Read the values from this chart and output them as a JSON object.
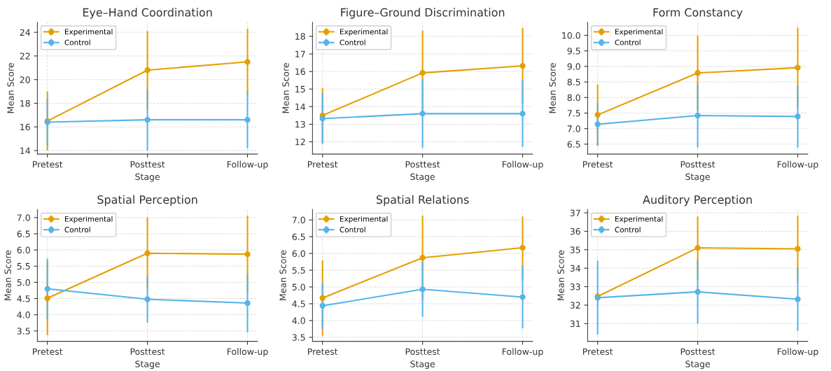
{
  "chart_data": [
    {
      "type": "line",
      "title": "Eye–Hand Coordination",
      "xlabel": "Stage",
      "ylabel": "Mean Score",
      "categories": [
        "Pretest",
        "Posttest",
        "Follow-up"
      ],
      "ylim": [
        13.7,
        24.85
      ],
      "yticks": [
        14,
        16,
        18,
        20,
        22,
        24
      ],
      "grid": true,
      "legend": "top left",
      "marker": "circle",
      "series": [
        {
          "name": "Experimental",
          "color": "#e69f00",
          "values": [
            16.5,
            20.8,
            21.5
          ],
          "errors": [
            2.5,
            3.3,
            2.8
          ]
        },
        {
          "name": "Control",
          "color": "#56b4e9",
          "values": [
            16.4,
            16.6,
            16.6
          ],
          "errors": [
            2.0,
            2.6,
            2.4
          ]
        }
      ]
    },
    {
      "type": "line",
      "title": "Figure–Ground Discrimination",
      "xlabel": "Stage",
      "ylabel": "Mean Score",
      "categories": [
        "Pretest",
        "Posttest",
        "Follow-up"
      ],
      "ylim": [
        11.3,
        18.8
      ],
      "yticks": [
        12,
        13,
        14,
        15,
        16,
        17,
        18
      ],
      "grid": true,
      "legend": "top left",
      "marker": "circle",
      "series": [
        {
          "name": "Experimental",
          "color": "#e69f00",
          "values": [
            13.5,
            15.92,
            16.32
          ],
          "errors": [
            1.55,
            2.4,
            2.15
          ]
        },
        {
          "name": "Control",
          "color": "#56b4e9",
          "values": [
            13.32,
            13.6,
            13.6
          ],
          "errors": [
            1.45,
            1.95,
            1.9
          ]
        }
      ]
    },
    {
      "type": "line",
      "title": "Form Constancy",
      "xlabel": "Stage",
      "ylabel": "Mean Score",
      "categories": [
        "Pretest",
        "Posttest",
        "Follow-up"
      ],
      "ylim": [
        6.18,
        10.42
      ],
      "yticks": [
        {
          "value": 6.5,
          "label": "6.5"
        },
        {
          "value": 7,
          "label": "7.0"
        },
        {
          "value": 7.5,
          "label": "7.5"
        },
        {
          "value": 8,
          "label": "8.0"
        },
        {
          "value": 8.5,
          "label": "8.5"
        },
        {
          "value": 9,
          "label": "9.0"
        },
        {
          "value": 9.5,
          "label": "9.5"
        },
        {
          "value": 10,
          "label": "10.0"
        }
      ],
      "grid": true,
      "legend": "top left",
      "marker": "circle",
      "series": [
        {
          "name": "Experimental",
          "color": "#e69f00",
          "values": [
            7.44,
            8.79,
            8.96
          ],
          "errors": [
            0.98,
            1.2,
            1.28
          ]
        },
        {
          "name": "Control",
          "color": "#56b4e9",
          "values": [
            7.14,
            7.42,
            7.39
          ],
          "errors": [
            0.69,
            1.03,
            1.0
          ]
        }
      ]
    },
    {
      "type": "line",
      "title": "Spatial Perception",
      "xlabel": "Stage",
      "ylabel": "Mean Score",
      "categories": [
        "Pretest",
        "Posttest",
        "Follow-up"
      ],
      "ylim": [
        3.18,
        7.25
      ],
      "yticks": [
        {
          "value": 3.5,
          "label": "3.5"
        },
        {
          "value": 4,
          "label": "4.0"
        },
        {
          "value": 4.5,
          "label": "4.5"
        },
        {
          "value": 5,
          "label": "5.0"
        },
        {
          "value": 5.5,
          "label": "5.5"
        },
        {
          "value": 6,
          "label": "6.0"
        },
        {
          "value": 6.5,
          "label": "6.5"
        },
        {
          "value": 7,
          "label": "7.0"
        }
      ],
      "grid": true,
      "legend": "top left",
      "marker": "circle",
      "series": [
        {
          "name": "Experimental",
          "color": "#e69f00",
          "values": [
            4.51,
            5.9,
            5.87
          ],
          "errors": [
            1.14,
            1.1,
            1.19
          ]
        },
        {
          "name": "Control",
          "color": "#56b4e9",
          "values": [
            4.8,
            4.48,
            4.36
          ],
          "errors": [
            0.93,
            0.72,
            0.9
          ]
        }
      ]
    },
    {
      "type": "line",
      "title": "Spatial Relations",
      "xlabel": "Stage",
      "ylabel": "Mean Score",
      "categories": [
        "Pretest",
        "Posttest",
        "Follow-up"
      ],
      "ylim": [
        3.38,
        7.31
      ],
      "yticks": [
        {
          "value": 3.5,
          "label": "3.5"
        },
        {
          "value": 4,
          "label": "4.0"
        },
        {
          "value": 4.5,
          "label": "4.5"
        },
        {
          "value": 5,
          "label": "5.0"
        },
        {
          "value": 5.5,
          "label": "5.5"
        },
        {
          "value": 6,
          "label": "6.0"
        },
        {
          "value": 6.5,
          "label": "6.5"
        },
        {
          "value": 7,
          "label": "7.0"
        }
      ],
      "grid": true,
      "legend": "top left",
      "marker": "circle",
      "series": [
        {
          "name": "Experimental",
          "color": "#e69f00",
          "values": [
            4.67,
            5.87,
            6.17
          ],
          "errors": [
            1.12,
            1.26,
            0.93
          ]
        },
        {
          "name": "Control",
          "color": "#56b4e9",
          "values": [
            4.44,
            4.93,
            4.7
          ],
          "errors": [
            0.68,
            0.82,
            0.93
          ]
        }
      ]
    },
    {
      "type": "line",
      "title": "Auditory Perception",
      "xlabel": "Stage",
      "ylabel": "Mean Score",
      "categories": [
        "Pretest",
        "Posttest",
        "Follow-up"
      ],
      "ylim": [
        30.04,
        37.18
      ],
      "yticks": [
        31,
        32,
        33,
        34,
        35,
        36,
        37
      ],
      "grid": true,
      "legend": "top left",
      "marker": "circle",
      "series": [
        {
          "name": "Experimental",
          "color": "#e69f00",
          "values": [
            32.47,
            35.1,
            35.05
          ],
          "errors": [
            null,
            1.7,
            1.8
          ]
        },
        {
          "name": "Control",
          "color": "#56b4e9",
          "values": [
            32.4,
            32.72,
            32.32
          ],
          "errors": [
            2.0,
            1.72,
            1.72
          ]
        }
      ]
    }
  ]
}
